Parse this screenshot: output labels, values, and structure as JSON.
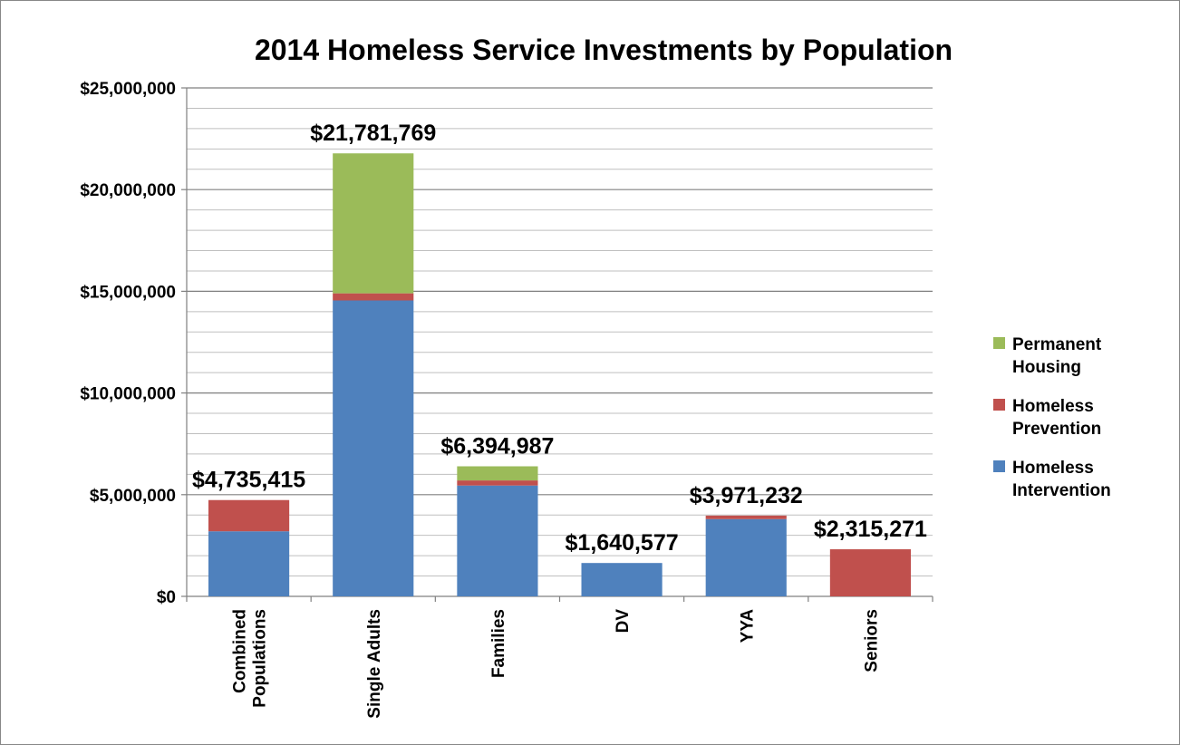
{
  "chart_data": {
    "type": "bar",
    "stacked": true,
    "title": "2014 Homeless Service Investments by Population",
    "xlabel": "",
    "ylabel": "",
    "ylim": [
      0,
      25000000
    ],
    "ytick_values": [
      0,
      5000000,
      10000000,
      15000000,
      20000000,
      25000000
    ],
    "ytick_labels": [
      "$0",
      "$5,000,000",
      "$10,000,000",
      "$15,000,000",
      "$20,000,000",
      "$25,000,000"
    ],
    "minor_grid_step": 1000000,
    "grid": true,
    "legend_position": "right",
    "categories": [
      [
        "Combined",
        "Populations"
      ],
      [
        "Single Adults"
      ],
      [
        "Families"
      ],
      [
        "DV"
      ],
      [
        "YYA"
      ],
      [
        "Seniors"
      ]
    ],
    "totals": [
      "$4,735,415",
      "$21,781,769",
      "$6,394,987",
      "$1,640,577",
      "$3,971,232",
      "$2,315,271"
    ],
    "series": [
      {
        "name": "Homeless Intervention",
        "color": "#4F81BD",
        "values": [
          3200000,
          14550000,
          5450000,
          1640577,
          3800000,
          0
        ]
      },
      {
        "name": "Homeless Prevention",
        "color": "#C0504D",
        "values": [
          1535415,
          350000,
          250000,
          0,
          171232,
          2315271
        ]
      },
      {
        "name": "Permanent Housing",
        "color": "#9BBB59",
        "values": [
          0,
          6881769,
          694987,
          0,
          0,
          0
        ]
      }
    ],
    "legend": [
      {
        "series_index": 2,
        "lines": [
          "Permanent",
          "Housing"
        ]
      },
      {
        "series_index": 1,
        "lines": [
          "Homeless",
          "Prevention"
        ]
      },
      {
        "series_index": 0,
        "lines": [
          "Homeless",
          "Intervention"
        ]
      }
    ]
  }
}
